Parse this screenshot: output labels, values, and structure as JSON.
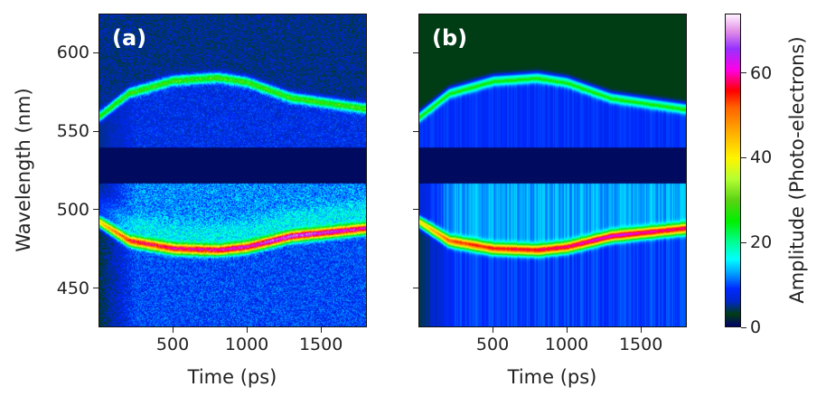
{
  "chart_data": {
    "type": "heatmap",
    "panels": [
      {
        "label": "(a)",
        "xlabel": "Time (ps)",
        "ylabel": "Wavelength (nm)",
        "style": "noisy"
      },
      {
        "label": "(b)",
        "xlabel": "Time (ps)",
        "ylabel": "",
        "style": "smooth"
      }
    ],
    "xlim": [
      0,
      1810
    ],
    "ylim": [
      425,
      625
    ],
    "xticks": [
      500,
      1000,
      1500
    ],
    "yticks": [
      450,
      500,
      550,
      600
    ],
    "colorbar": {
      "label": "Amplitude (Photo-electrons)",
      "clim": [
        0,
        74
      ],
      "ticks": [
        0,
        20,
        40,
        60
      ],
      "colormap": "gist_ncar"
    },
    "blocked_band_nm": [
      517,
      540
    ],
    "upper_band": {
      "time_ps": [
        0,
        200,
        500,
        800,
        1000,
        1300,
        1810
      ],
      "wavelength_nm": [
        560,
        575,
        583,
        585,
        582,
        572,
        565
      ],
      "amplitude": 20
    },
    "lower_band": {
      "time_ps": [
        0,
        200,
        500,
        800,
        1000,
        1300,
        1810
      ],
      "wavelength_nm": [
        492,
        480,
        475,
        474,
        476,
        483,
        488
      ],
      "amplitude": [
        38,
        45,
        48,
        50,
        52,
        56,
        50
      ]
    }
  }
}
